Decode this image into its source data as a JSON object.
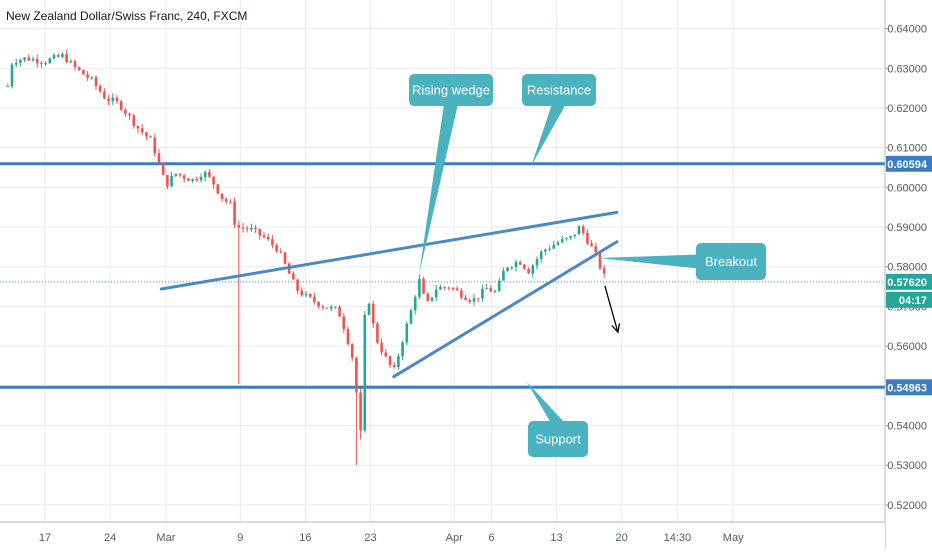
{
  "header": {
    "title": "New Zealand Dollar/Swiss Franc, 240, FXCM"
  },
  "colors": {
    "up": "#26a69a",
    "down": "#ef5350",
    "level_line": "#3b7dbf",
    "wedge_line": "#4a8ac4",
    "callout": "#4bb3c0",
    "current_price": "#26a69a",
    "grid": "#e8ebf0",
    "axis_text": "#555b66"
  },
  "chart_data": {
    "type": "candlestick",
    "symbol": "New Zealand Dollar/Swiss Franc",
    "timeframe": "240",
    "source": "FXCM",
    "ylim": [
      0.5162,
      0.6472
    ],
    "y_ticks": [
      0.52,
      0.53,
      0.54,
      0.55,
      0.56,
      0.57,
      0.58,
      0.59,
      0.6,
      0.61,
      0.62,
      0.63,
      0.64
    ],
    "x_ticks": [
      {
        "label": "17",
        "x": 0
      },
      {
        "label": "24",
        "x": 7
      },
      {
        "label": "Mar",
        "x": 13
      },
      {
        "label": "9",
        "x": 21
      },
      {
        "label": "16",
        "x": 28
      },
      {
        "label": "23",
        "x": 35
      },
      {
        "label": "Apr",
        "x": 44
      },
      {
        "label": "6",
        "x": 48
      },
      {
        "label": "13",
        "x": 55
      },
      {
        "label": "20",
        "x": 62
      },
      {
        "label": "14:30",
        "x": 68
      },
      {
        "label": "May",
        "x": 74
      }
    ],
    "price_labels": {
      "resistance": "0.60594",
      "support": "0.54963",
      "current": "0.57620",
      "countdown": "04:17"
    },
    "levels": [
      {
        "name": "Resistance",
        "value": 0.60594
      },
      {
        "name": "Support",
        "value": 0.54963
      }
    ],
    "current_price": 0.5762,
    "wedge": {
      "upper": [
        [
          12.5,
          0.5744
        ],
        [
          61.5,
          0.5937
        ]
      ],
      "lower": [
        [
          37.5,
          0.5523
        ],
        [
          61.5,
          0.5863
        ]
      ]
    },
    "projection_arrow": [
      [
        60.2,
        0.5752
      ],
      [
        61.6,
        0.5635
      ]
    ],
    "annotations": [
      {
        "text": "Rising wedge",
        "anchor": [
          40.2,
          0.5778
        ]
      },
      {
        "text": "Resistance",
        "anchor": [
          52.3,
          0.6055
        ]
      },
      {
        "text": "Breakout",
        "anchor": [
          59.5,
          0.5822
        ]
      },
      {
        "text": "Support",
        "anchor": [
          51.8,
          0.551
        ]
      }
    ],
    "price_path": [
      [
        -4,
        0.6255
      ],
      [
        -3.5,
        0.632
      ],
      [
        -2,
        0.6325
      ],
      [
        0,
        0.6318
      ],
      [
        2,
        0.6332
      ],
      [
        3,
        0.6305
      ],
      [
        5,
        0.627
      ],
      [
        6.5,
        0.6225
      ],
      [
        8,
        0.621
      ],
      [
        10,
        0.615
      ],
      [
        11.5,
        0.6115
      ],
      [
        12.5,
        0.604
      ],
      [
        13,
        0.6005
      ],
      [
        14,
        0.6035
      ],
      [
        16,
        0.6018
      ],
      [
        17,
        0.604
      ],
      [
        18,
        0.6015
      ],
      [
        19,
        0.5975
      ],
      [
        20,
        0.5955
      ],
      [
        20.5,
        0.59
      ],
      [
        22,
        0.5895
      ],
      [
        23.5,
        0.5875
      ],
      [
        25,
        0.5845
      ],
      [
        26,
        0.5795
      ],
      [
        27,
        0.5745
      ],
      [
        28,
        0.5725
      ],
      [
        30,
        0.57
      ],
      [
        31.5,
        0.569
      ],
      [
        32,
        0.566
      ],
      [
        33,
        0.558
      ],
      [
        33.6,
        0.546
      ],
      [
        34,
        0.5365
      ],
      [
        34.5,
        0.576
      ],
      [
        35.5,
        0.5625
      ],
      [
        36.5,
        0.5575
      ],
      [
        37.5,
        0.5535
      ],
      [
        38.5,
        0.562
      ],
      [
        39.5,
        0.57
      ],
      [
        40.2,
        0.577
      ],
      [
        41,
        0.57
      ],
      [
        42,
        0.5745
      ],
      [
        43.5,
        0.575
      ],
      [
        44.5,
        0.5735
      ],
      [
        46,
        0.5715
      ],
      [
        47.5,
        0.5745
      ],
      [
        48.5,
        0.5735
      ],
      [
        49.5,
        0.58
      ],
      [
        51,
        0.5815
      ],
      [
        52,
        0.579
      ],
      [
        53.5,
        0.584
      ],
      [
        55,
        0.586
      ],
      [
        56.5,
        0.5872
      ],
      [
        57.5,
        0.59
      ],
      [
        58.5,
        0.586
      ],
      [
        59.3,
        0.5825
      ],
      [
        60,
        0.578
      ],
      [
        60.5,
        0.5762
      ]
    ],
    "spikes": [
      {
        "x": 21,
        "low": 0.5505
      },
      {
        "x": 33.6,
        "low": 0.53
      },
      {
        "x": 34,
        "low": 0.5365
      }
    ]
  }
}
